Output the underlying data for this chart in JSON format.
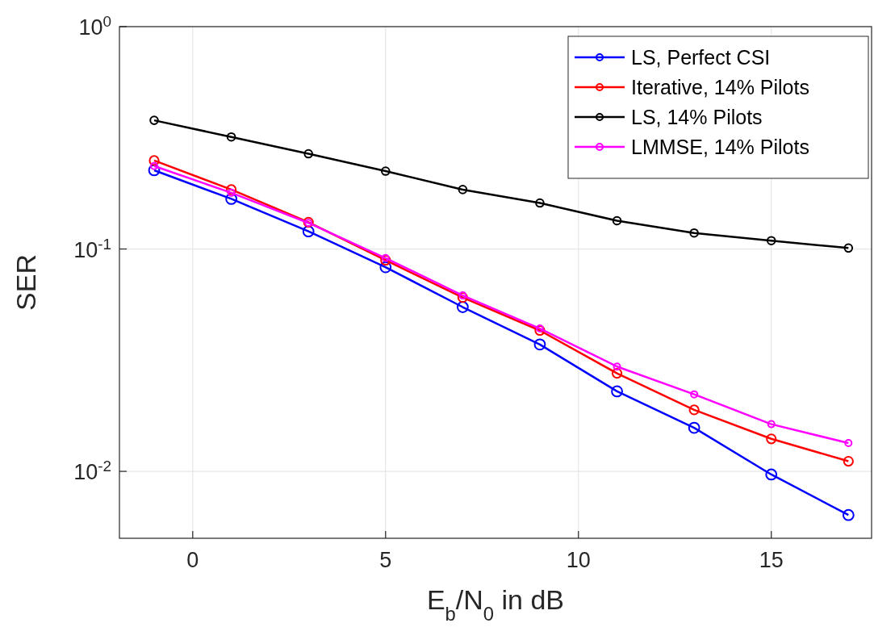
{
  "chart_data": {
    "type": "line",
    "xlabel": "E$_{b}$/N$_{0}$ in dB",
    "ylabel": "SER",
    "log": "y",
    "grid": true,
    "legend": "top right",
    "marker": "circle",
    "line_style": "solid",
    "x": [
      -1,
      1,
      3,
      5,
      7,
      9,
      11,
      13,
      15,
      17
    ],
    "xlim": [
      -1.9,
      17.6
    ],
    "xticks": [
      0,
      5,
      10,
      15
    ],
    "ylim": [
      0.005,
      1
    ],
    "yticks": [
      {
        "value": 1,
        "label": "10$^{0}$"
      },
      {
        "value": 0.1,
        "label": "10$^{-1}$"
      },
      {
        "value": 0.01,
        "label": "10$^{-2}$"
      }
    ],
    "series": [
      {
        "name": "LS, Perfect CSI",
        "color": "#0000ff",
        "values": [
          0.226,
          0.168,
          0.12,
          0.0828,
          0.0548,
          0.0372,
          0.0229,
          0.0157,
          0.00968,
          0.00636
        ]
      },
      {
        "name": "Iterative, 14% Pilots",
        "color": "#ff0000",
        "values": [
          0.25,
          0.185,
          0.132,
          0.089,
          0.0605,
          0.043,
          0.0276,
          0.0189,
          0.014,
          0.0111
        ]
      },
      {
        "name": "LS, 14% Pilots",
        "color": "#000000",
        "values": [
          0.379,
          0.319,
          0.268,
          0.224,
          0.185,
          0.161,
          0.134,
          0.118,
          0.109,
          0.101
        ]
      },
      {
        "name": "LMMSE, 14% Pilots",
        "color": "#ff00ff",
        "values": [
          0.236,
          0.179,
          0.131,
          0.091,
          0.0618,
          0.0439,
          0.0296,
          0.0222,
          0.0163,
          0.0134
        ]
      }
    ]
  }
}
